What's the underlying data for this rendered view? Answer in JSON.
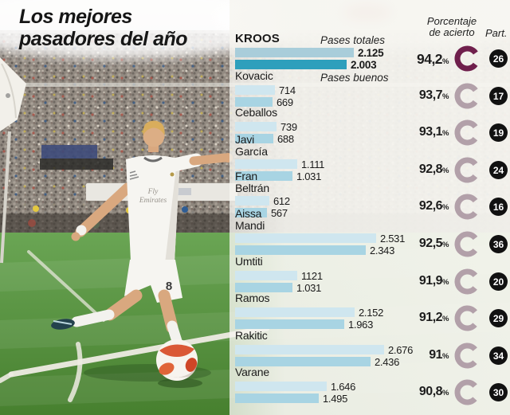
{
  "title": {
    "line1": "Los mejores",
    "line2": "pasadores del año"
  },
  "header": {
    "pct_line1": "Porcentaje",
    "pct_line2": "de acierto",
    "part": "Part.",
    "legend_totales": "Pases totales",
    "legend_buenos": "Pases buenos",
    "percent_symbol": "%"
  },
  "photo": {
    "shirt_line1": "Fly",
    "shirt_line2": "Emirates",
    "shorts_number": "8"
  },
  "colors": {
    "bar_totales": "#cfe6ef",
    "bar_buenos": "#a8d4e3",
    "bar_totales_highlight": "#a9cdda",
    "bar_buenos_highlight": "#2e9fbc",
    "donut": "#b2a0a9",
    "donut_highlight": "#6f1f4c",
    "badge_bg": "#111111",
    "badge_text": "#ffffff"
  },
  "chart_data": {
    "type": "bar",
    "title": "Los mejores pasadores del año",
    "series_labels": [
      "Pases totales",
      "Pases buenos"
    ],
    "value_axis": "pases",
    "players": [
      {
        "name": "KROOS",
        "lines": [
          "KROOS"
        ],
        "pases_totales": 2125,
        "totales_label": "2.125",
        "pases_buenos": 2003,
        "buenos_label": "2.003",
        "porcentaje_acierto": 94.2,
        "porcentaje_label": "94,2",
        "partidos": 26,
        "highlight": true
      },
      {
        "name": "Kovacic",
        "lines": [
          "Kovacic"
        ],
        "pases_totales": 714,
        "totales_label": "714",
        "pases_buenos": 669,
        "buenos_label": "669",
        "porcentaje_acierto": 93.7,
        "porcentaje_label": "93,7",
        "partidos": 17,
        "highlight": false
      },
      {
        "name": "Ceballos",
        "lines": [
          "Ceballos"
        ],
        "pases_totales": 739,
        "totales_label": "739",
        "pases_buenos": 688,
        "buenos_label": "688",
        "porcentaje_acierto": 93.1,
        "porcentaje_label": "93,1",
        "partidos": 19,
        "highlight": false
      },
      {
        "name": "Javi García",
        "lines": [
          "Javi",
          "García"
        ],
        "pases_totales": 1111,
        "totales_label": "1.111",
        "pases_buenos": 1031,
        "buenos_label": "1.031",
        "porcentaje_acierto": 92.8,
        "porcentaje_label": "92,8",
        "partidos": 24,
        "highlight": false
      },
      {
        "name": "Fran Beltrán",
        "lines": [
          "Fran",
          "Beltrán"
        ],
        "pases_totales": 612,
        "totales_label": "612",
        "pases_buenos": 567,
        "buenos_label": "567",
        "porcentaje_acierto": 92.6,
        "porcentaje_label": "92,6",
        "partidos": 16,
        "highlight": false
      },
      {
        "name": "Aissa Mandi",
        "lines": [
          "Aissa",
          "Mandi"
        ],
        "pases_totales": 2531,
        "totales_label": "2.531",
        "pases_buenos": 2343,
        "buenos_label": "2.343",
        "porcentaje_acierto": 92.5,
        "porcentaje_label": "92,5",
        "partidos": 36,
        "highlight": false
      },
      {
        "name": "Umtiti",
        "lines": [
          "Umtiti"
        ],
        "pases_totales": 1121,
        "totales_label": "1121",
        "pases_buenos": 1031,
        "buenos_label": "1.031",
        "porcentaje_acierto": 91.9,
        "porcentaje_label": "91,9",
        "partidos": 20,
        "highlight": false
      },
      {
        "name": "Ramos",
        "lines": [
          "Ramos"
        ],
        "pases_totales": 2152,
        "totales_label": "2.152",
        "pases_buenos": 1963,
        "buenos_label": "1.963",
        "porcentaje_acierto": 91.2,
        "porcentaje_label": "91,2",
        "partidos": 29,
        "highlight": false
      },
      {
        "name": "Rakitic",
        "lines": [
          "Rakitic"
        ],
        "pases_totales": 2676,
        "totales_label": "2.676",
        "pases_buenos": 2436,
        "buenos_label": "2.436",
        "porcentaje_acierto": 91.0,
        "porcentaje_label": "91",
        "partidos": 34,
        "highlight": false
      },
      {
        "name": "Varane",
        "lines": [
          "Varane"
        ],
        "pases_totales": 1646,
        "totales_label": "1.646",
        "pases_buenos": 1495,
        "buenos_label": "1.495",
        "porcentaje_acierto": 90.8,
        "porcentaje_label": "90,8",
        "partidos": 30,
        "highlight": false
      }
    ]
  }
}
